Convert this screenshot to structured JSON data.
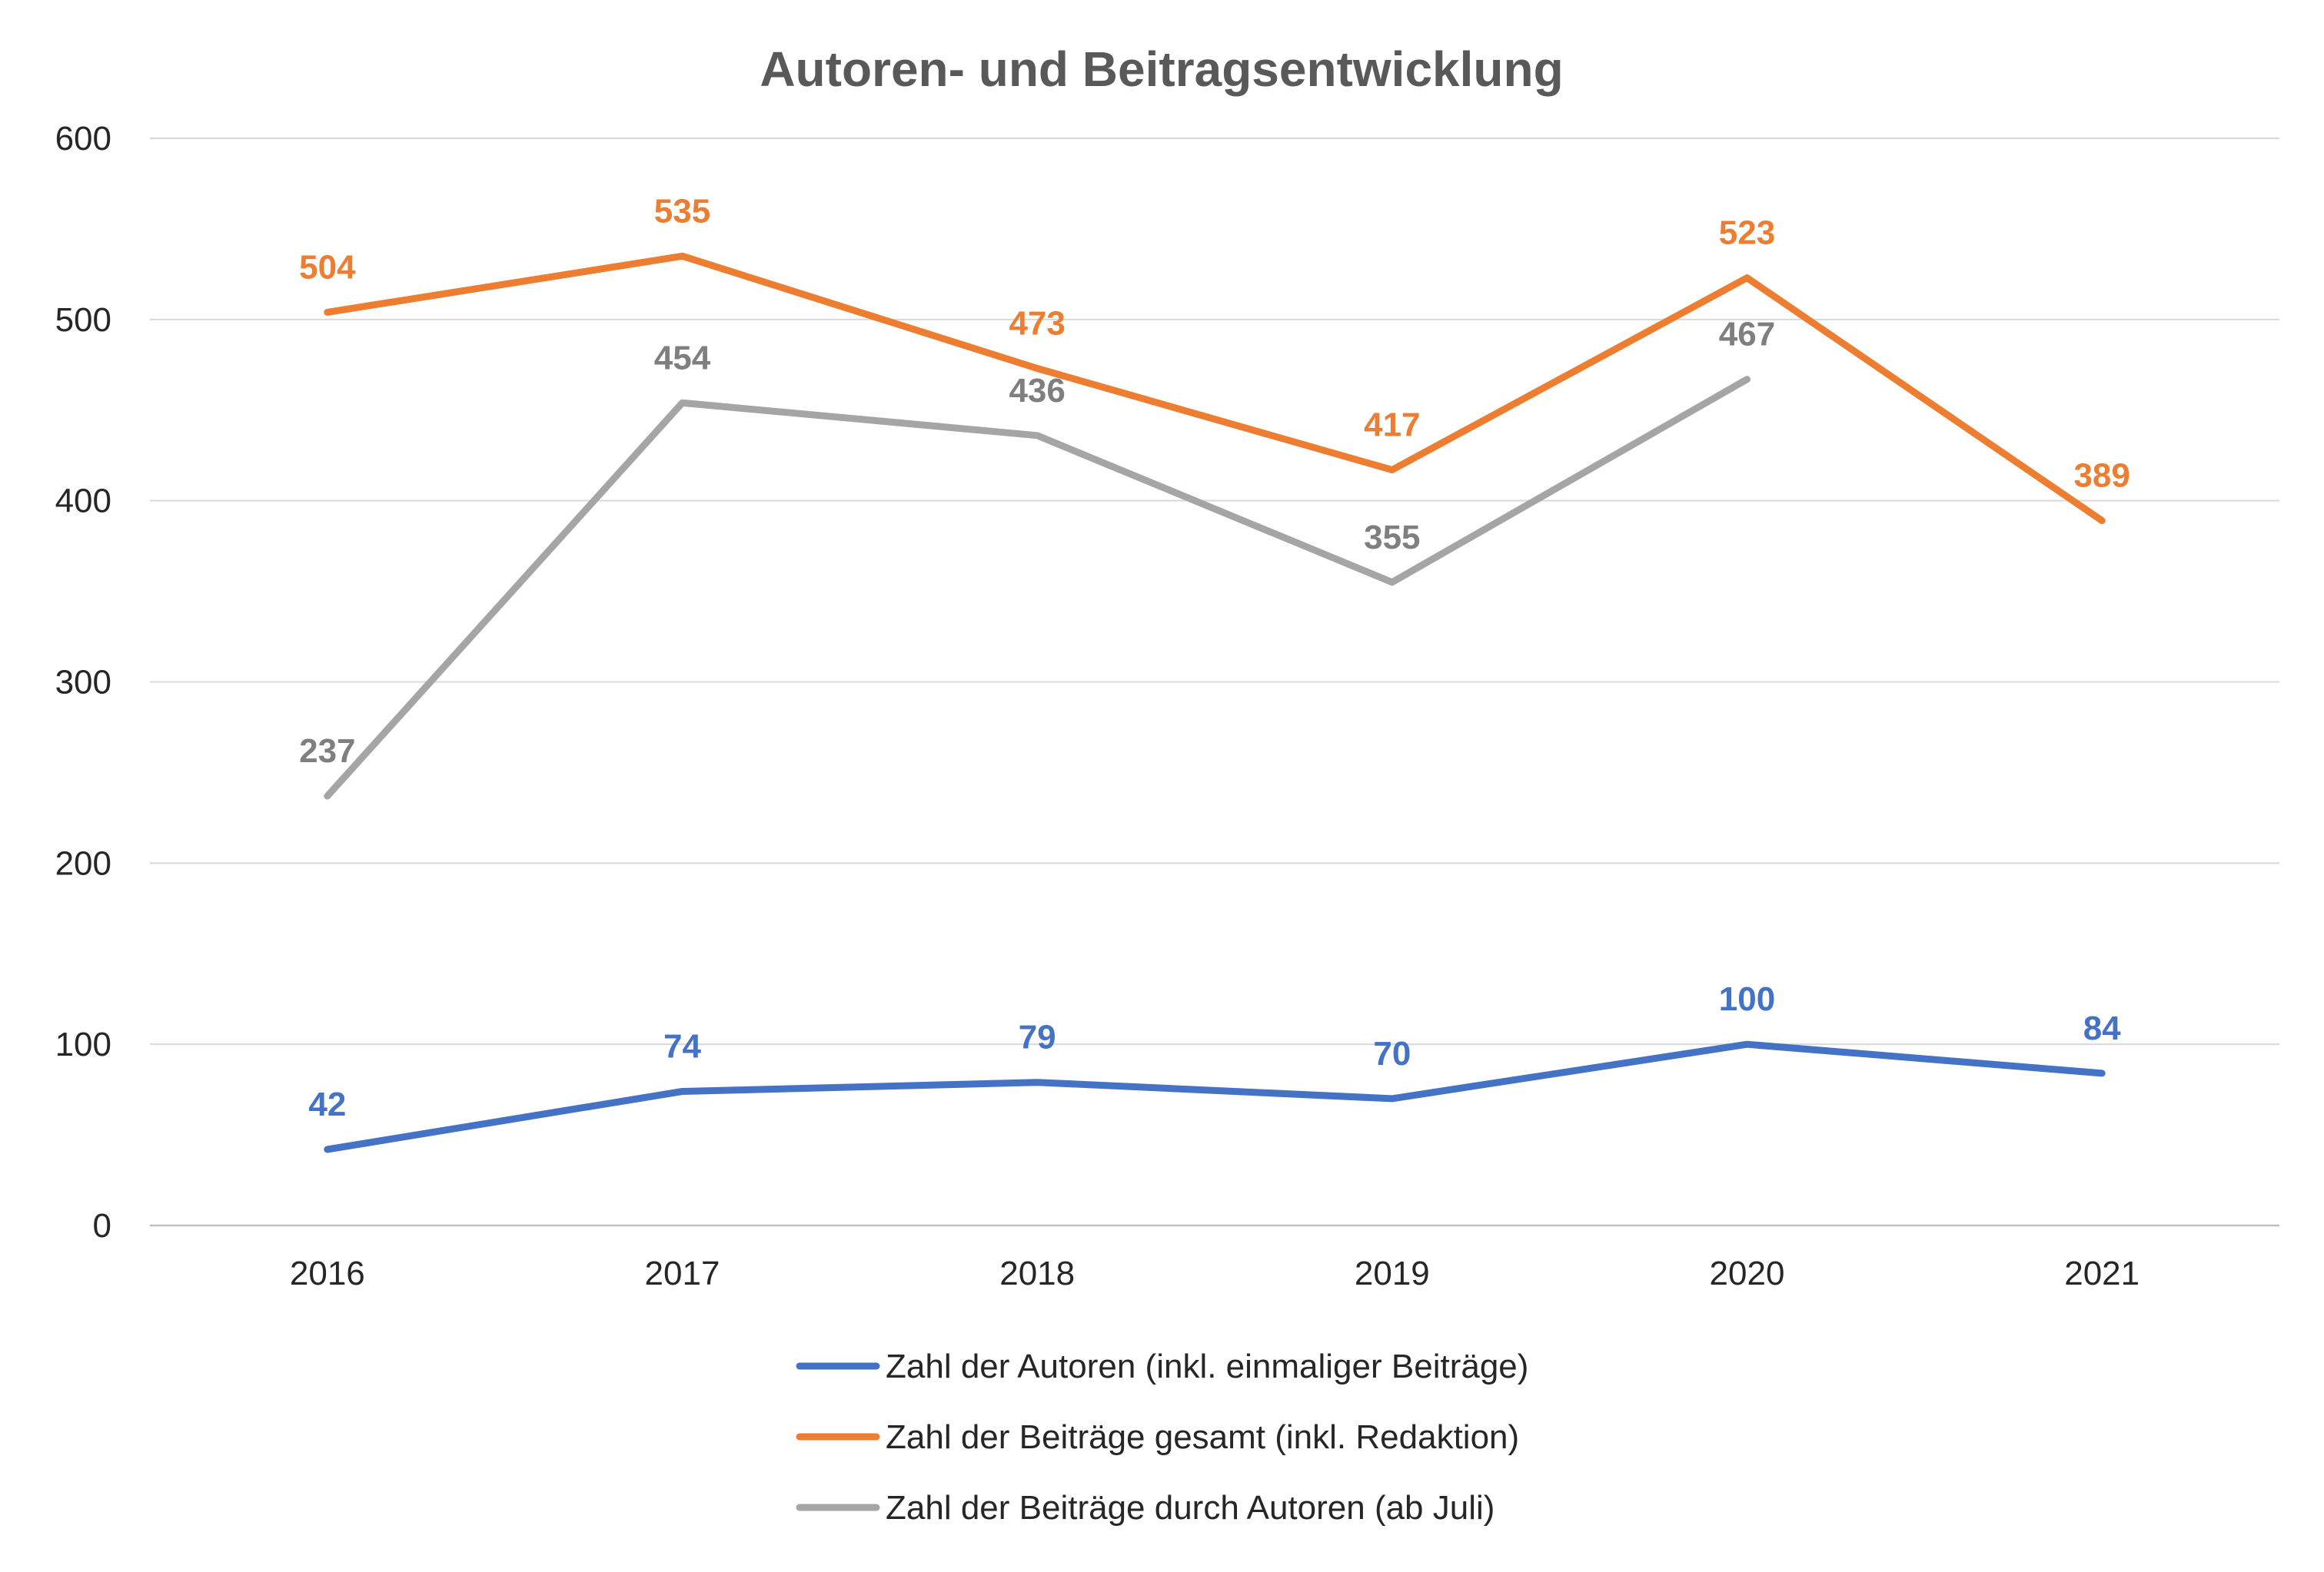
{
  "chart_data": {
    "type": "line",
    "title": "Autoren- und Beitragsentwicklung",
    "categories": [
      "2016",
      "2017",
      "2018",
      "2019",
      "2020",
      "2021"
    ],
    "ylim": [
      0,
      600
    ],
    "yticks": [
      0,
      100,
      200,
      300,
      400,
      500,
      600
    ],
    "grid": true,
    "legend_position": "bottom",
    "series": [
      {
        "name": "Zahl der Autoren (inkl. einmaliger Beiträge)",
        "color": "#4472C4",
        "values": [
          42,
          74,
          79,
          70,
          100,
          84
        ],
        "label_placement": [
          "above",
          "above",
          "above",
          "above",
          "above",
          "above"
        ]
      },
      {
        "name": "Zahl der Beiträge gesamt (inkl. Redaktion)",
        "color": "#ED7D31",
        "values": [
          504,
          535,
          473,
          417,
          523,
          389
        ],
        "label_placement": [
          "above",
          "above",
          "above",
          "above",
          "above",
          "above"
        ]
      },
      {
        "name": "Zahl der Beiträge durch Autoren (ab Juli)",
        "color": "#A5A5A5",
        "label_color": "#7F7F7F",
        "values": [
          237,
          454,
          436,
          355,
          467,
          null
        ],
        "label_placement": [
          "above",
          "above",
          "above",
          "above",
          "above",
          "above"
        ]
      }
    ]
  }
}
